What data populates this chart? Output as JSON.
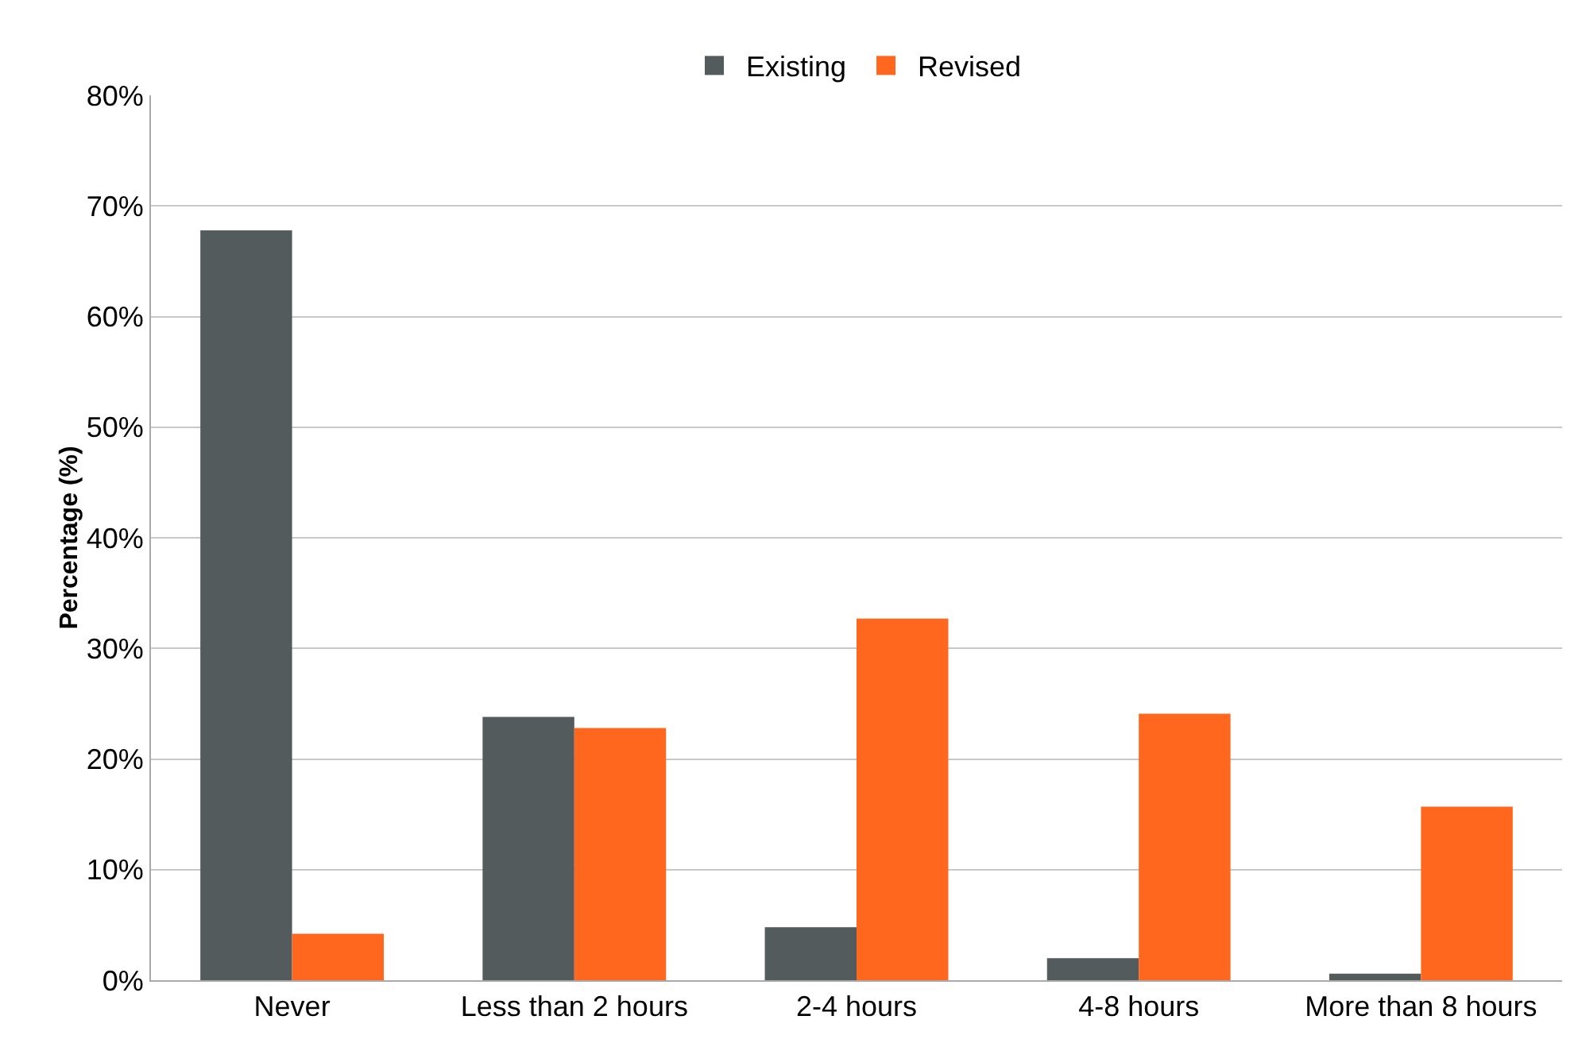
{
  "chart_data": {
    "type": "bar",
    "ylabel": "Percentage (%)",
    "categories": [
      "Never",
      "Less than 2 hours",
      "2-4 hours",
      "4-8 hours",
      "More than 8 hours"
    ],
    "series": [
      {
        "name": "Existing",
        "color": "#535b5d",
        "values": [
          67.8,
          23.8,
          4.8,
          2.0,
          0.6
        ]
      },
      {
        "name": "Revised",
        "color": "#ff671f",
        "values": [
          4.2,
          22.8,
          32.7,
          24.1,
          15.7
        ]
      }
    ],
    "ylim": [
      0,
      80
    ],
    "yticks": [
      {
        "value": 0,
        "label": "0%"
      },
      {
        "value": 10,
        "label": "10%"
      },
      {
        "value": 20,
        "label": "20%"
      },
      {
        "value": 30,
        "label": "30%"
      },
      {
        "value": 40,
        "label": "40%"
      },
      {
        "value": 50,
        "label": "50%"
      },
      {
        "value": 60,
        "label": "60%"
      },
      {
        "value": 70,
        "label": "70%"
      },
      {
        "value": 80,
        "label": "80%"
      }
    ],
    "grid": "y",
    "legend": "top"
  }
}
